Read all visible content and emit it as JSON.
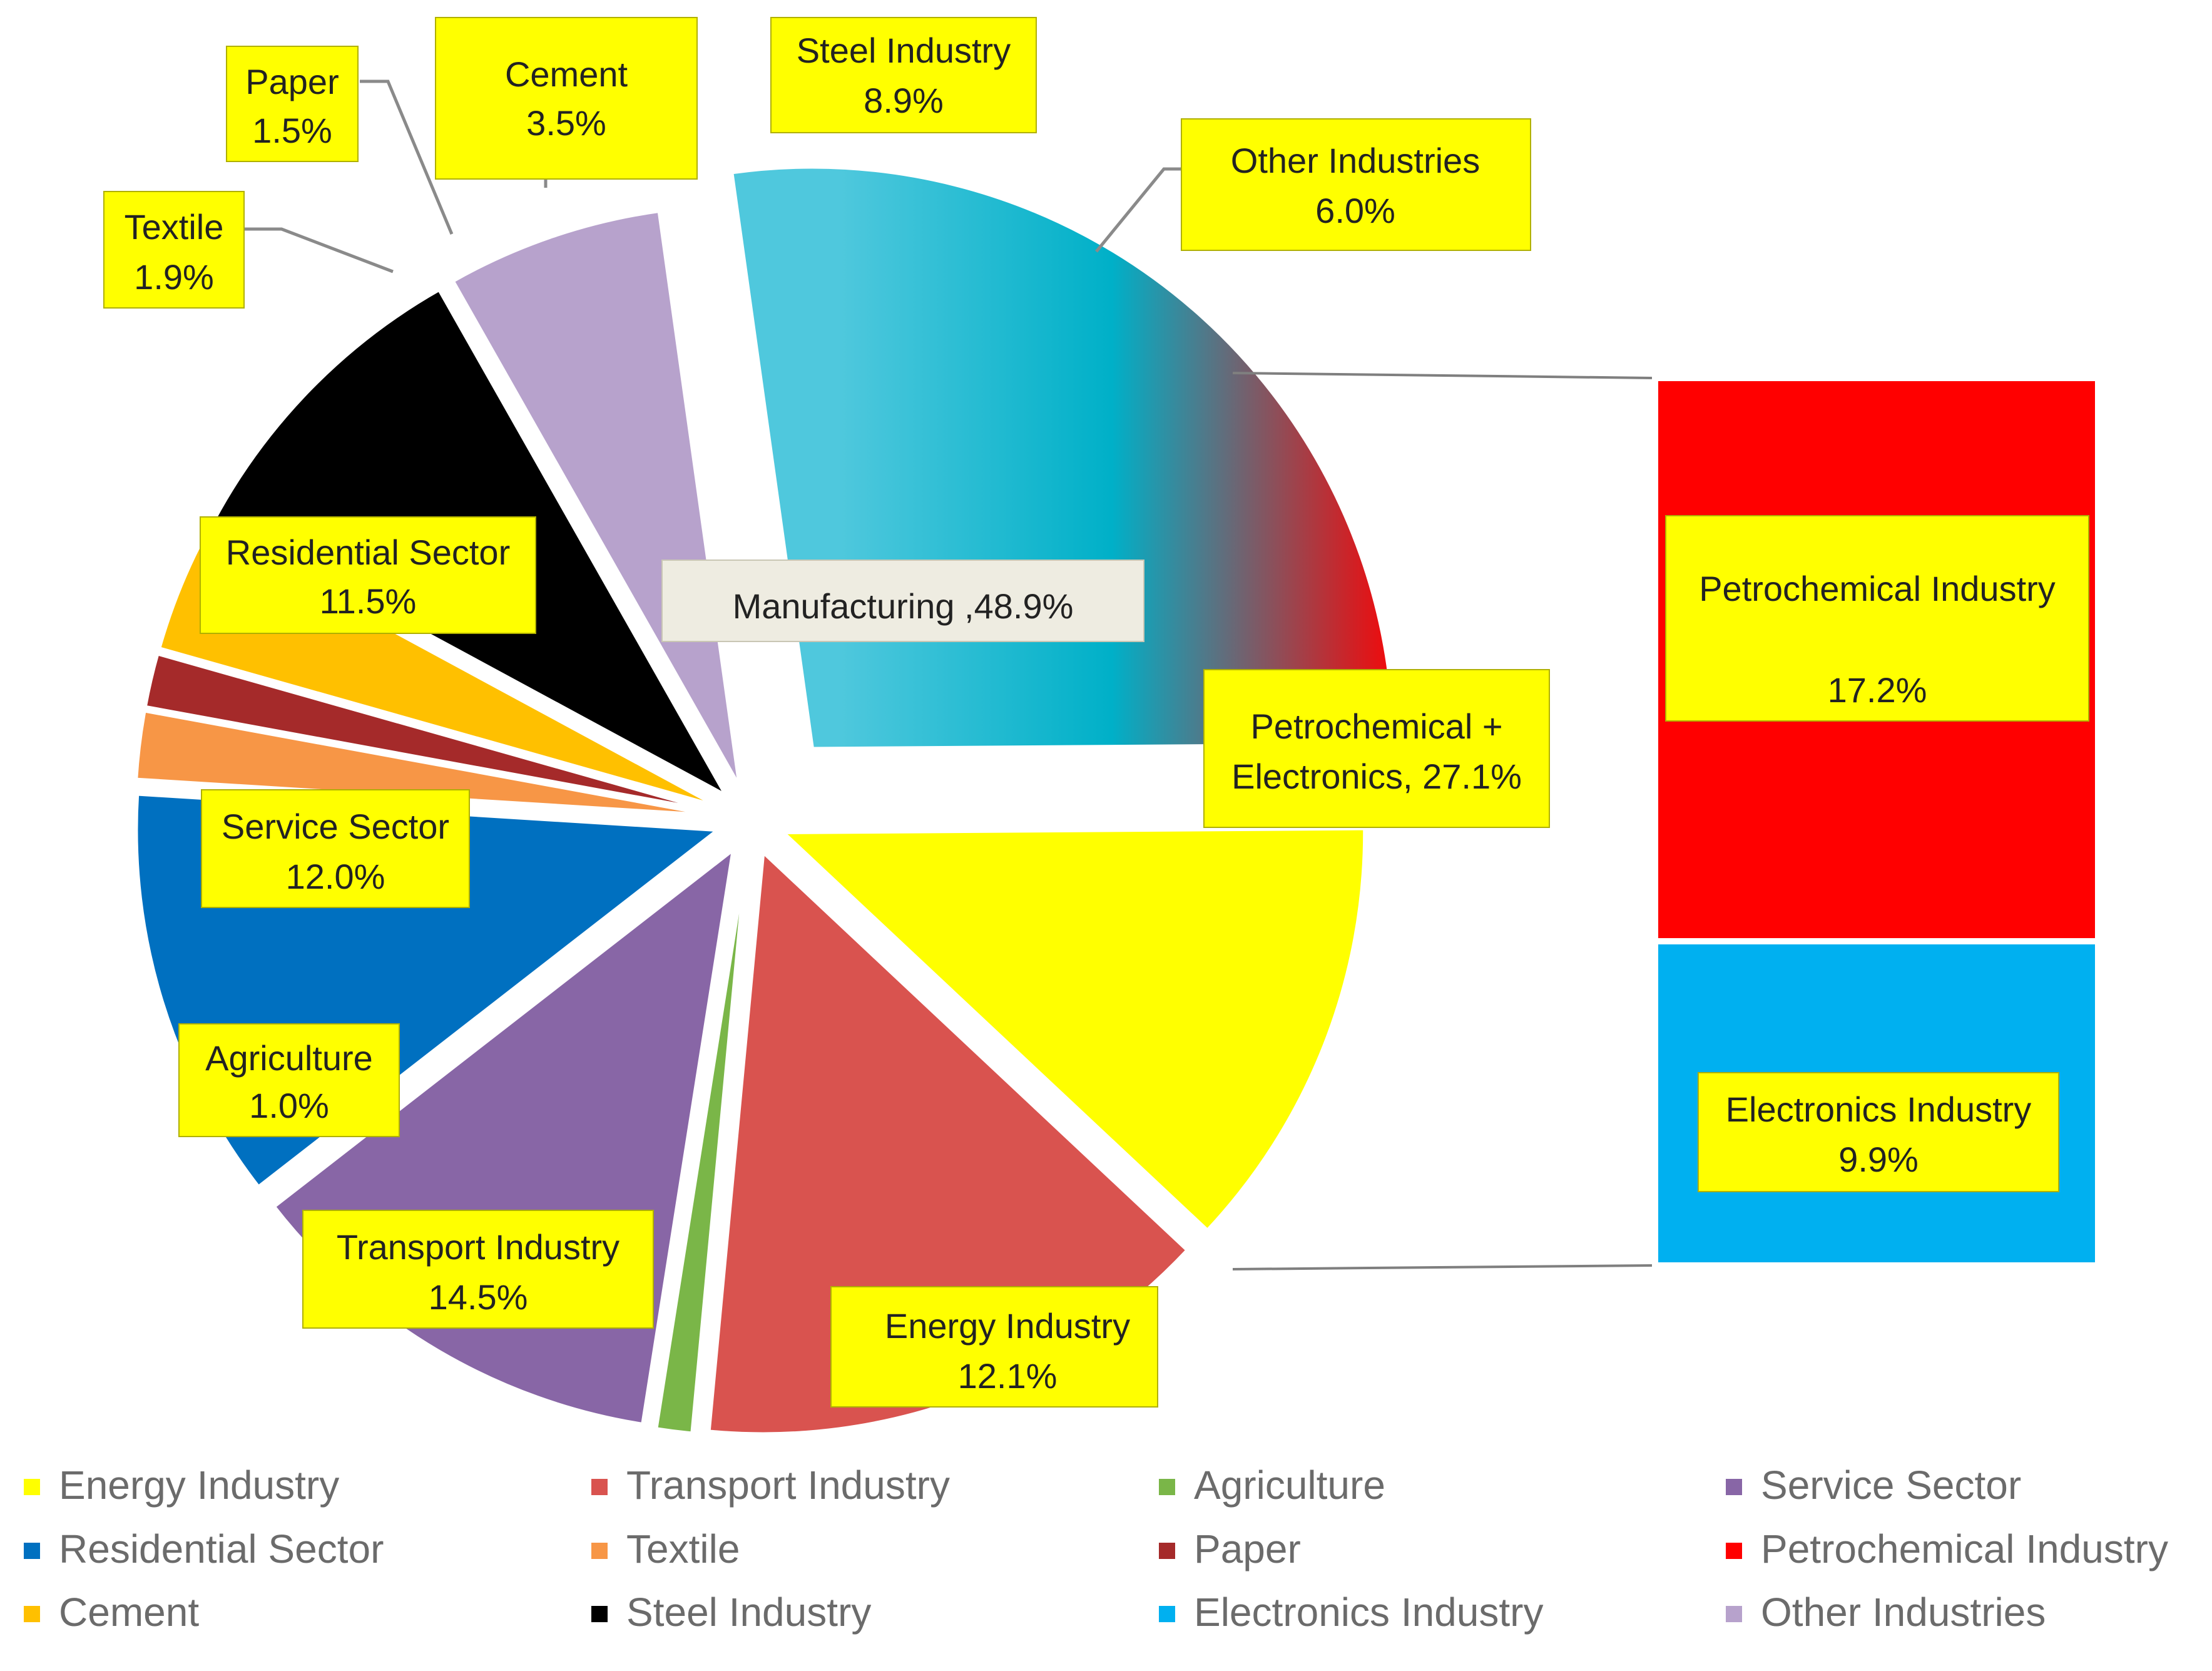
{
  "chart_data": {
    "type": "pie",
    "title": "",
    "unit": "%",
    "slices": [
      {
        "key": "energy",
        "name": "Energy Industry",
        "value": 12.1,
        "label": "12.1%",
        "color": "#ffff00"
      },
      {
        "key": "transport",
        "name": "Transport Industry",
        "value": 14.5,
        "label": "14.5%",
        "color": "#d9534f"
      },
      {
        "key": "agriculture",
        "name": "Agriculture",
        "value": 1.0,
        "label": "1.0%",
        "color": "#7ab648"
      },
      {
        "key": "service",
        "name": "Service Sector",
        "value": 12.0,
        "label": "12.0%",
        "color": "#8866a6"
      },
      {
        "key": "residential",
        "name": "Residential Sector",
        "value": 11.5,
        "label": "11.5%",
        "color": "#0070c0"
      },
      {
        "key": "textile",
        "name": "Textile",
        "value": 1.9,
        "label": "1.9%",
        "color": "#f79646"
      },
      {
        "key": "paper",
        "name": "Paper",
        "value": 1.5,
        "label": "1.5%",
        "color": "#a52a2a"
      },
      {
        "key": "cement",
        "name": "Cement",
        "value": 3.5,
        "label": "3.5%",
        "color": "#ffc000"
      },
      {
        "key": "steel",
        "name": "Steel Industry",
        "value": 8.9,
        "label": "8.9%",
        "color": "#000000"
      },
      {
        "key": "other",
        "name": "Other Industries",
        "value": 6.0,
        "label": "6.0%",
        "color": "#b7a2cc"
      },
      {
        "key": "petro_elec",
        "name": "Petrochemical + Electronics",
        "value": 27.1,
        "label": "Petrochemical + Electronics, 27.1%",
        "colors": [
          "#4fc8dd",
          "#00b0c8",
          "#ff0000"
        ]
      }
    ],
    "group_label": "Manufacturing ,48.9%",
    "breakdown": {
      "parent": "Petrochemical + Electronics",
      "segments": [
        {
          "key": "petro",
          "name": "Petrochemical Industry",
          "value": 17.2,
          "label": "17.2%",
          "color": "#ff0000"
        },
        {
          "key": "electronics",
          "name": "Electronics Industry",
          "value": 9.9,
          "label": "9.9%",
          "color": "#00b0f0"
        }
      ]
    },
    "legend": [
      {
        "name": "Energy Industry",
        "color": "#ffff00"
      },
      {
        "name": "Transport Industry",
        "color": "#d9534f"
      },
      {
        "name": "Agriculture",
        "color": "#7ab648"
      },
      {
        "name": "Service Sector",
        "color": "#8866a6"
      },
      {
        "name": "Residential Sector",
        "color": "#0070c0"
      },
      {
        "name": "Textile",
        "color": "#f79646"
      },
      {
        "name": "Paper",
        "color": "#a52a2a"
      },
      {
        "name": "Petrochemical Industry",
        "color": "#ff0000"
      },
      {
        "name": "Cement",
        "color": "#ffc000"
      },
      {
        "name": "Steel Industry",
        "color": "#000000"
      },
      {
        "name": "Electronics Industry",
        "color": "#00b0f0"
      },
      {
        "name": "Other Industries",
        "color": "#b7a2cc"
      }
    ],
    "legend_position": "bottom"
  }
}
